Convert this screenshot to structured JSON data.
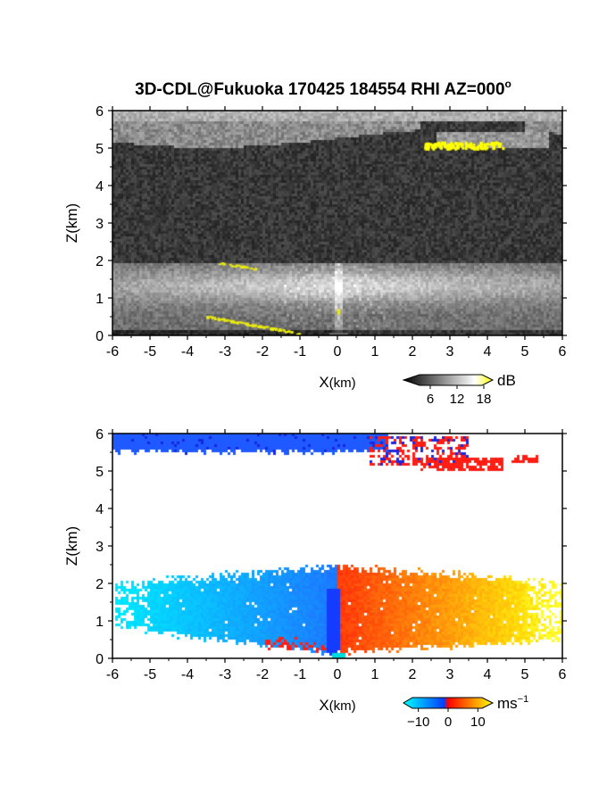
{
  "chart_data": [
    {
      "type": "heatmap",
      "title": "3D-CDL@Fukuoka 170425 184554 RHI AZ=000",
      "title_superscript": "o",
      "xlabel_main": "X",
      "xlabel_unit": "(km)",
      "ylabel": "Z(km)",
      "xlim": [
        -6,
        6
      ],
      "ylim": [
        0,
        6
      ],
      "xticks": [
        "-6",
        "-5",
        "-4",
        "-3",
        "-2",
        "-1",
        "0",
        "1",
        "2",
        "3",
        "4",
        "5",
        "6"
      ],
      "yticks": [
        "0",
        "1",
        "2",
        "3",
        "4",
        "5",
        "6"
      ],
      "colorbar": {
        "label": "dB",
        "ticks": [
          "6",
          "12",
          "18"
        ],
        "range": [
          0,
          20
        ],
        "colors": [
          "#000000",
          "#ffffff",
          "#ffff00"
        ]
      },
      "features": {
        "lower_layer_top_km": 2.0,
        "upper_layer_km": [
          5.3,
          6.0
        ],
        "yellow_patch": {
          "x": [
            2.2,
            4.4
          ],
          "z": [
            4.95,
            5.3
          ]
        }
      }
    },
    {
      "type": "heatmap",
      "xlabel_main": "X",
      "xlabel_unit": "(km)",
      "ylabel": "Z(km)",
      "xlim": [
        -6,
        6
      ],
      "ylim": [
        0,
        6
      ],
      "xticks": [
        "-6",
        "-5",
        "-4",
        "-3",
        "-2",
        "-1",
        "0",
        "1",
        "2",
        "3",
        "4",
        "5",
        "6"
      ],
      "yticks": [
        "0",
        "1",
        "2",
        "3",
        "4",
        "5",
        "6"
      ],
      "colorbar": {
        "label_main": "ms",
        "label_sup": "−1",
        "ticks": [
          "−10",
          "0",
          "10"
        ],
        "range": [
          -15,
          15
        ],
        "colors": [
          "#00ffff",
          "#0040ff",
          "#ff0000",
          "#ff8000",
          "#ffff00"
        ]
      },
      "features": {
        "negative_side_color": "#1e7bff",
        "positive_side_color": "#ff5a10",
        "lower_layer_top_km": 2.6,
        "upper_layer_km": [
          5.5,
          6.0
        ]
      }
    }
  ]
}
